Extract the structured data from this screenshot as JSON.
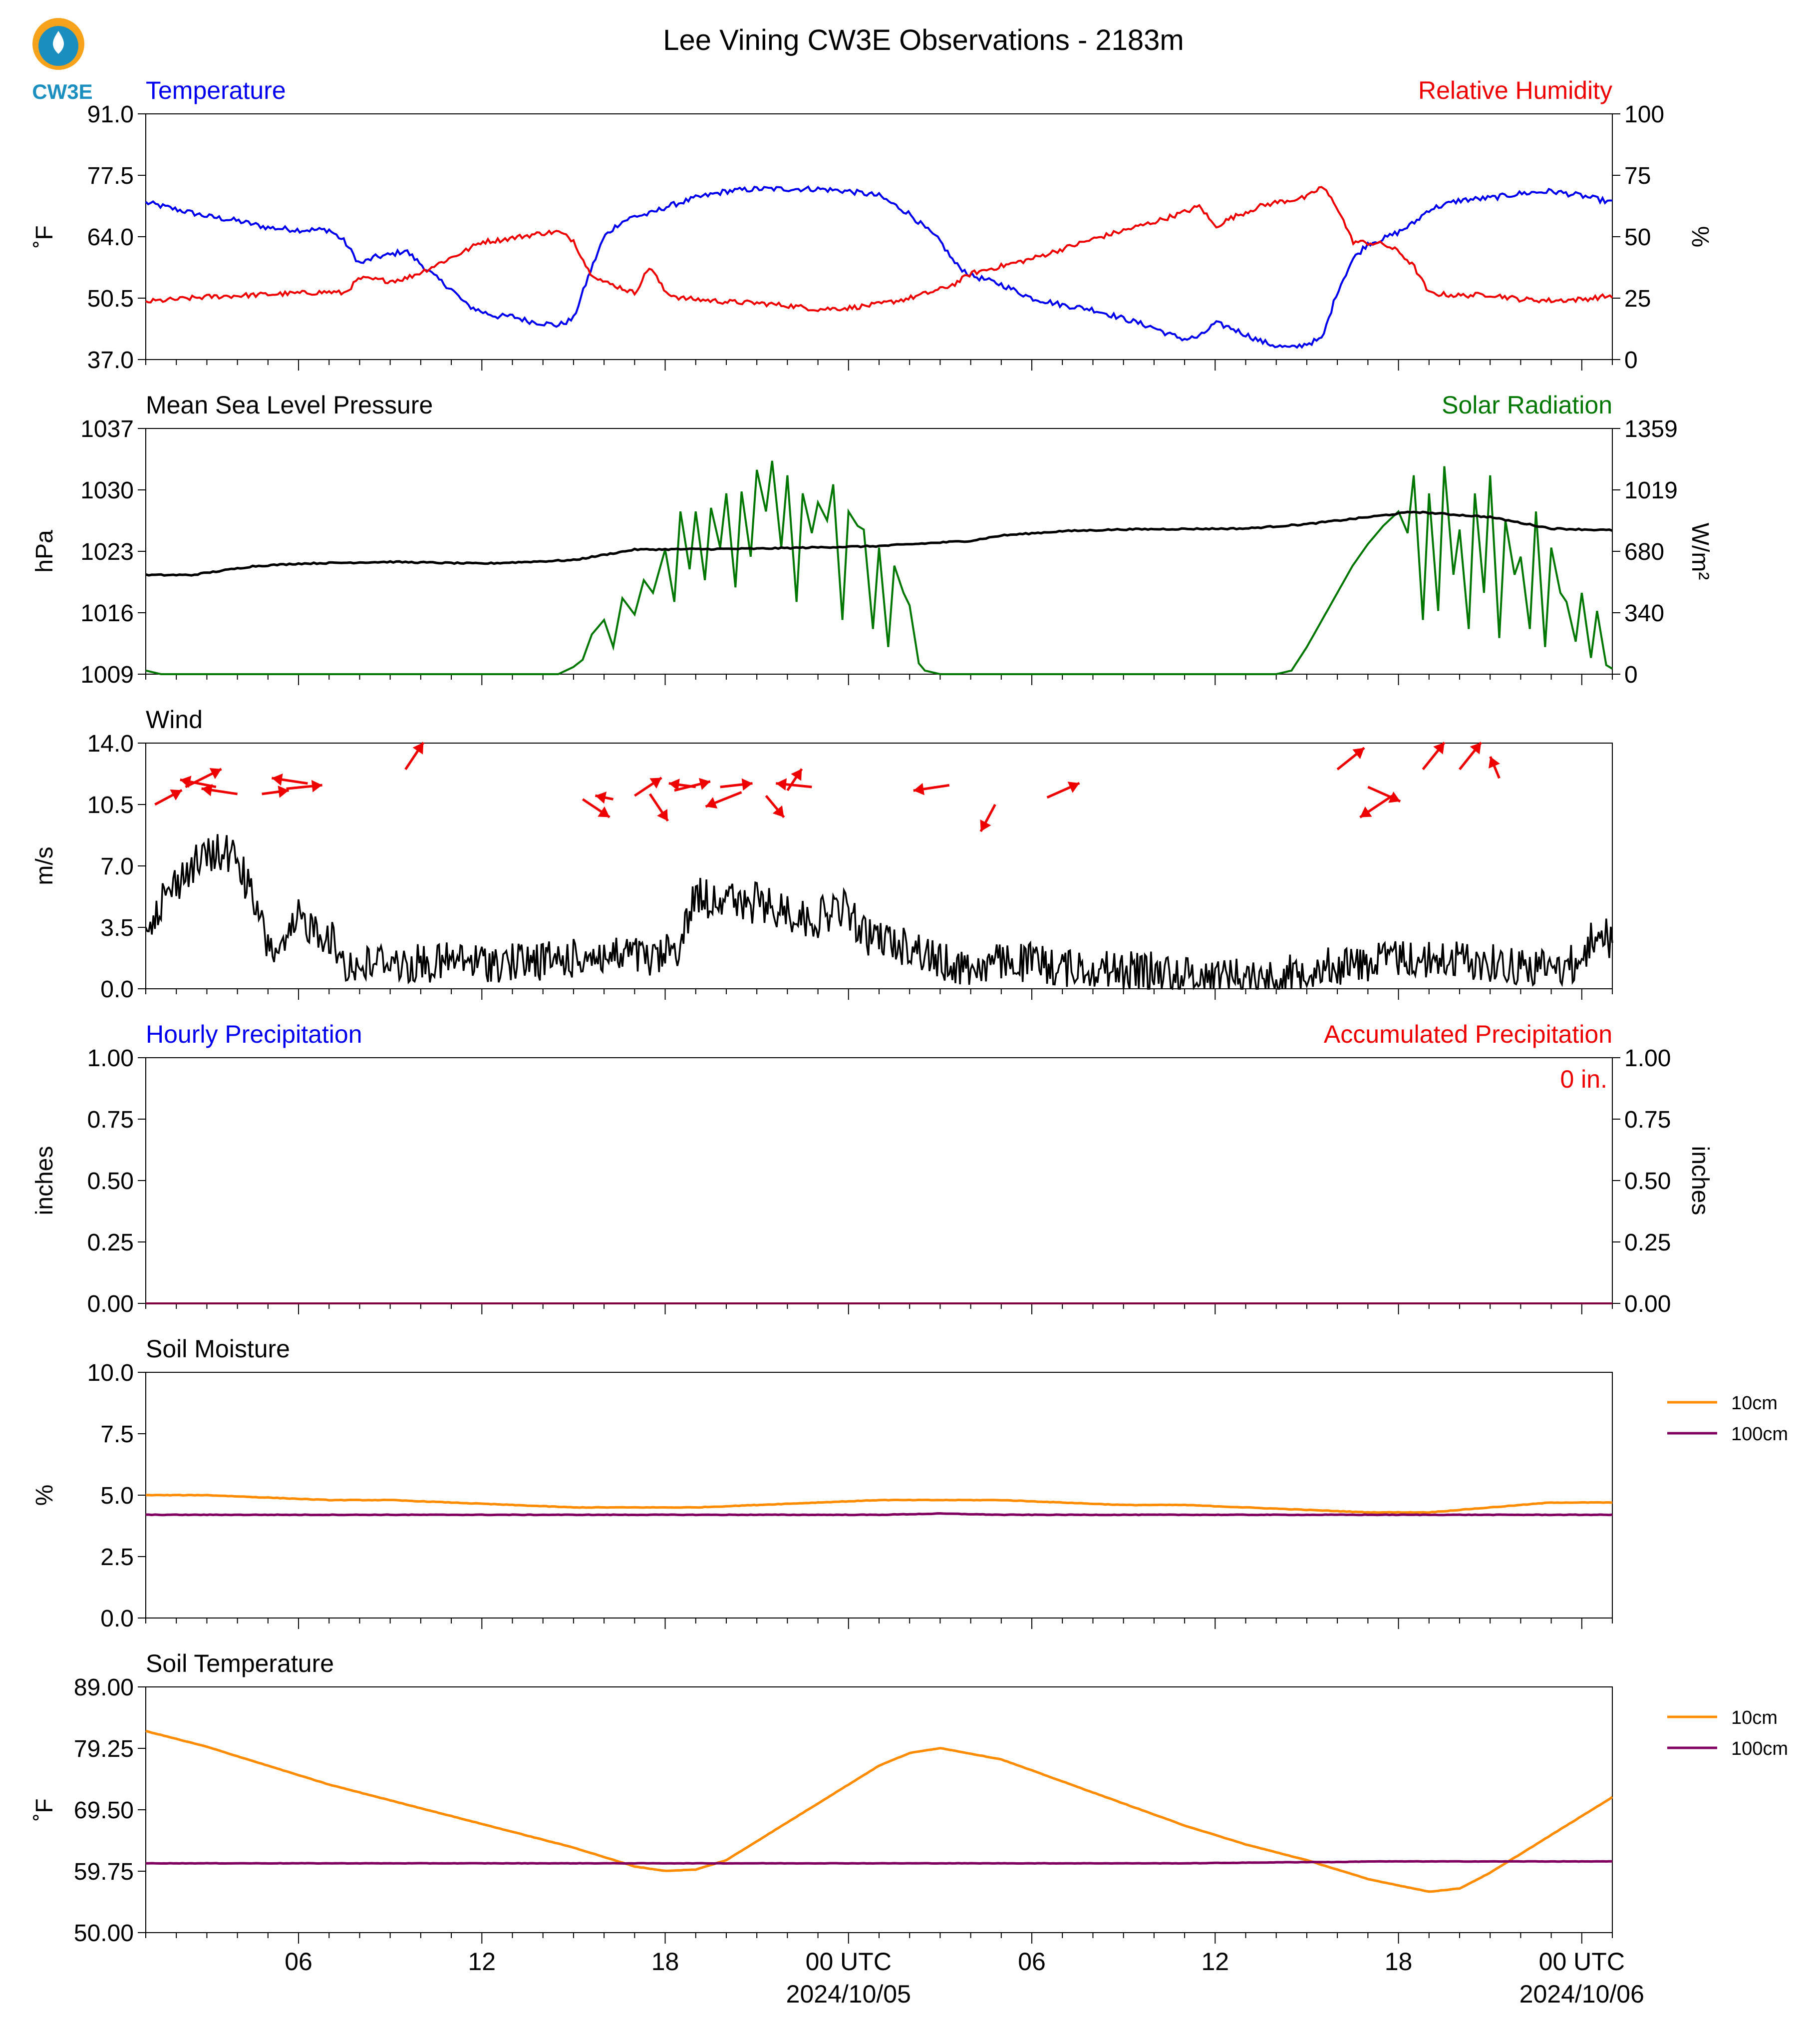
{
  "title": "Lee Vining CW3E Observations - 2183m",
  "logo": {
    "text": "CW3E",
    "icon": "water-drop-sun-icon",
    "color": "#1a8fbf",
    "accent": "#f7a21b"
  },
  "x_axis": {
    "tick_labels": [
      "06",
      "12",
      "18",
      "00 UTC",
      "06",
      "12",
      "18",
      "00 UTC"
    ],
    "date_labels": [
      "2024/10/05",
      "2024/10/06"
    ]
  },
  "chart_data": [
    {
      "type": "line",
      "title_left": "Temperature",
      "title_right": "Relative Humidity",
      "ylabel": "˚F",
      "ylabel_right": "%",
      "ylim": [
        37,
        91
      ],
      "ylim_right": [
        0,
        100
      ],
      "yticks": [
        "37.0",
        "50.5",
        "64.0",
        "77.5",
        "91.0"
      ],
      "yticks_right": [
        "0",
        "25",
        "50",
        "75",
        "100"
      ],
      "x_hours": [
        0,
        1,
        2,
        3,
        4,
        5,
        6,
        6.5,
        7,
        7.5,
        8,
        8.5,
        9,
        9.5,
        10,
        10.5,
        11,
        11.5,
        12,
        12.5,
        13,
        13.5,
        14,
        14.5,
        15,
        15.5,
        16,
        16.5,
        17,
        17.5,
        18,
        19,
        20,
        21,
        22,
        23,
        24,
        25,
        26,
        26.5,
        27,
        28,
        29,
        30,
        31,
        32,
        33,
        33.5,
        34,
        34.5,
        35,
        35.5,
        36,
        36.5,
        37,
        37.5,
        38,
        38.5,
        39,
        39.5,
        40,
        40.5,
        41,
        41.5,
        42,
        43,
        44,
        45,
        46,
        47,
        48
      ],
      "series": [
        {
          "name": "Temperature",
          "color": "#0000ee",
          "values": [
            71.5,
            70,
            68.5,
            67.5,
            66,
            65.5,
            65.5,
            63,
            58,
            59.5,
            60,
            61,
            58,
            55,
            52.5,
            49,
            47.5,
            46.5,
            46.5,
            45.5,
            45,
            44.5,
            46,
            55.5,
            64,
            67,
            68.5,
            69,
            70.5,
            71.5,
            72.5,
            74,
            74.5,
            74.5,
            74.5,
            74,
            73,
            69,
            63,
            58,
            55.5,
            53.5,
            50.5,
            49,
            48,
            46,
            44,
            42.5,
            41.5,
            42,
            45,
            44,
            42.5,
            41,
            40,
            39.5,
            40.5,
            41.5,
            52,
            59,
            62.5,
            63.5,
            65,
            67,
            70,
            72,
            72.5,
            73.5,
            74,
            73,
            71.5
          ]
        },
        {
          "name": "Relative Humidity",
          "color": "#ee0000",
          "values": [
            23.5,
            24.5,
            25.5,
            26,
            26.5,
            27,
            27.5,
            27,
            33,
            32.5,
            32,
            33,
            35.5,
            38.5,
            41.5,
            44.5,
            48,
            48.5,
            49.5,
            50.5,
            51.5,
            52,
            48.5,
            36,
            31.5,
            29.5,
            27,
            38,
            27.5,
            25,
            24.5,
            23.5,
            23,
            22,
            20.5,
            21,
            22.5,
            25,
            28.5,
            31,
            35,
            38,
            41,
            45,
            49,
            52.5,
            56,
            58,
            60,
            62.5,
            54,
            57.5,
            60,
            62.5,
            64,
            65,
            66,
            70.5,
            62,
            48,
            47.5,
            47,
            44,
            38,
            27,
            26,
            26.5,
            24.5,
            24,
            24.5,
            26
          ]
        }
      ]
    },
    {
      "type": "line",
      "title_left": "Mean Sea Level Pressure",
      "title_right": "Solar Radiation",
      "ylabel": "hPa",
      "ylabel_right": "W/m²",
      "ylim": [
        1009,
        1037
      ],
      "ylim_right": [
        0,
        1359
      ],
      "yticks": [
        "1009",
        "1016",
        "1023",
        "1030",
        "1037"
      ],
      "yticks_right": [
        "0",
        "340",
        "680",
        "1019",
        "1359"
      ],
      "pressure": {
        "name": "Mean Sea Level Pressure",
        "color": "#000000",
        "x_hours": [
          0,
          1.5,
          2.5,
          3.5,
          5,
          8,
          11,
          14,
          16,
          20,
          24,
          27,
          28,
          30,
          32,
          36,
          38,
          40,
          41.5,
          44,
          46,
          48
        ],
        "values": [
          1020.3,
          1020.3,
          1020.8,
          1021.3,
          1021.6,
          1021.8,
          1021.6,
          1022.0,
          1023.2,
          1023.3,
          1023.6,
          1024.2,
          1024.8,
          1025.3,
          1025.5,
          1025.6,
          1026.1,
          1026.9,
          1027.5,
          1026.9,
          1025.6,
          1025.4
        ]
      },
      "solar": {
        "name": "Solar Radiation",
        "color": "#007700",
        "x_hours": [
          0,
          0.5,
          13.5,
          14,
          14.3,
          14.6,
          15,
          15.3,
          15.6,
          16,
          16.3,
          16.6,
          17,
          17.3,
          17.5,
          17.8,
          18,
          18.3,
          18.5,
          18.8,
          19,
          19.3,
          19.5,
          19.8,
          20,
          20.3,
          20.5,
          20.8,
          21,
          21.3,
          21.5,
          21.8,
          22,
          22.3,
          22.5,
          22.8,
          23,
          23.3,
          23.5,
          23.8,
          24,
          24.3,
          24.5,
          24.8,
          25,
          25.3,
          25.5,
          26,
          37,
          37.5,
          38,
          38.5,
          39,
          39.5,
          40,
          40.5,
          41,
          41.3,
          41.5,
          41.8,
          42,
          42.3,
          42.5,
          42.8,
          43,
          43.3,
          43.5,
          43.8,
          44,
          44.3,
          44.5,
          44.8,
          45,
          45.3,
          45.5,
          45.8,
          46,
          46.3,
          46.5,
          46.8,
          47,
          47.3,
          47.5,
          47.8,
          48
        ],
        "values": [
          20,
          0,
          0,
          40,
          80,
          220,
          300,
          150,
          420,
          330,
          520,
          450,
          690,
          400,
          900,
          580,
          900,
          520,
          920,
          700,
          1000,
          480,
          1010,
          650,
          1130,
          900,
          1180,
          700,
          1100,
          400,
          1000,
          780,
          950,
          850,
          1050,
          300,
          900,
          820,
          800,
          250,
          700,
          150,
          600,
          450,
          380,
          60,
          20,
          0,
          0,
          20,
          150,
          300,
          450,
          600,
          720,
          820,
          900,
          780,
          1100,
          300,
          1000,
          350,
          1150,
          550,
          800,
          250,
          1000,
          450,
          1100,
          200,
          850,
          550,
          650,
          250,
          900,
          150,
          700,
          450,
          400,
          180,
          450,
          90,
          350,
          50,
          30
        ]
      }
    },
    {
      "type": "line",
      "title_left": "Wind",
      "ylabel": "m/s",
      "ylim": [
        0,
        14
      ],
      "yticks": [
        "0.0",
        "3.5",
        "7.0",
        "10.5",
        "14.0"
      ],
      "speed": {
        "name": "Wind Speed",
        "color": "#000000",
        "x_hours": [
          0,
          0.5,
          1,
          1.5,
          2,
          2.5,
          3,
          3.5,
          4,
          4.5,
          5,
          5.5,
          6,
          6.5,
          7,
          7.5,
          8,
          8.5,
          9,
          9.5,
          10,
          11,
          12,
          13,
          14,
          14.5,
          15,
          15.5,
          16,
          16.5,
          17,
          17.5,
          18,
          18.5,
          19,
          19.5,
          20,
          20.5,
          21,
          21.5,
          22,
          22.5,
          23,
          23.5,
          24,
          24.5,
          25,
          25.5,
          26,
          27,
          28,
          29,
          30,
          31,
          32,
          33,
          34,
          35,
          36,
          37,
          38,
          39,
          40,
          41,
          42,
          43,
          44,
          45,
          46,
          47,
          47.5,
          48
        ],
        "values": [
          3.5,
          5.0,
          6.0,
          7.0,
          7.5,
          7.8,
          7.5,
          5.0,
          2.5,
          2.0,
          4.0,
          3.5,
          3.0,
          1.5,
          1.2,
          1.5,
          1.8,
          1.2,
          1.5,
          1.4,
          1.6,
          1.5,
          1.5,
          1.6,
          1.7,
          2.0,
          1.8,
          1.8,
          2.0,
          1.5,
          2.0,
          2.5,
          5.5,
          5.0,
          5.5,
          4.5,
          5.0,
          4.5,
          4.5,
          4.0,
          4.0,
          4.5,
          4.5,
          3.0,
          3.0,
          2.5,
          2.5,
          2.0,
          1.5,
          1.2,
          1.5,
          1.5,
          1.2,
          1.2,
          1.0,
          1.0,
          0.8,
          0.8,
          0.7,
          0.5,
          1.2,
          1.3,
          1.5,
          1.8,
          1.6,
          1.7,
          1.5,
          1.3,
          1.2,
          1.5,
          3.5,
          2.5
        ]
      },
      "vectors": {
        "color": "#ee0000",
        "note_hours": [
          0.3,
          1.3,
          2.3,
          3.0,
          3.8,
          4.6,
          5.3,
          8.5,
          14.3,
          15.3,
          16.0,
          16.5,
          17.3,
          18.0,
          18.8,
          19.5,
          20.3,
          21.0,
          21.8,
          26.3,
          27.8,
          29.5,
          39.0,
          40.0,
          40.8,
          41.8,
          43.0,
          44.3
        ],
        "u": [
          1.5,
          2.0,
          -2.0,
          -2.0,
          1.5,
          2.0,
          -2.0,
          1.0,
          1.5,
          -1.0,
          1.5,
          1.0,
          2.0,
          -1.5,
          1.8,
          -2.0,
          1.0,
          0.8,
          -2.0,
          -2.0,
          -0.8,
          1.8,
          1.5,
          1.8,
          -1.8,
          1.2,
          1.2,
          -0.5
        ],
        "v": [
          0.8,
          1.0,
          0.4,
          0.3,
          0.2,
          0.2,
          0.3,
          1.5,
          -1.0,
          0.2,
          1.0,
          -1.5,
          0.5,
          0.2,
          0.2,
          -0.8,
          -1.2,
          1.2,
          0.2,
          -0.3,
          -1.5,
          0.8,
          1.2,
          -0.8,
          -1.2,
          1.5,
          1.5,
          1.2
        ],
        "level": [
          10.5,
          11.5,
          11.5,
          11.1,
          11.1,
          11.4,
          11.7,
          12.5,
          10.8,
          10.8,
          11.0,
          11.1,
          11.3,
          11.5,
          11.5,
          11.2,
          11.0,
          11.3,
          11.5,
          11.6,
          10.5,
          10.9,
          12.5,
          11.5,
          11.0,
          12.5,
          12.5,
          12.0
        ]
      }
    },
    {
      "type": "line",
      "title_left": "Hourly Precipitation",
      "title_right": "Accumulated Precipitation",
      "ylabel": "inches",
      "ylabel_right": "inches",
      "ylim": [
        0,
        1
      ],
      "ylim_right": [
        0,
        1
      ],
      "yticks": [
        "0.00",
        "0.25",
        "0.50",
        "0.75",
        "1.00"
      ],
      "yticks_right": [
        "0.00",
        "0.25",
        "0.50",
        "0.75",
        "1.00"
      ],
      "annotation": "0 in.",
      "series": [
        {
          "name": "Hourly Precipitation",
          "color": "#0000ee",
          "values": [
            0,
            0
          ]
        },
        {
          "name": "Accumulated Precipitation",
          "color": "#ee0000",
          "values": [
            0,
            0
          ]
        }
      ]
    },
    {
      "type": "line",
      "title_left": "Soil Moisture",
      "ylabel": "%",
      "ylim": [
        0,
        10
      ],
      "yticks": [
        "0.0",
        "2.5",
        "5.0",
        "7.5",
        "10.0"
      ],
      "x_hours": [
        0,
        2,
        4,
        6,
        8,
        10,
        12,
        14,
        16,
        18,
        20,
        22,
        24,
        26,
        28,
        30,
        32,
        34,
        36,
        38,
        40,
        42,
        44,
        46,
        48
      ],
      "legend": "right",
      "series": [
        {
          "name": "10cm",
          "color": "#ff8c00",
          "values": [
            5.0,
            5.0,
            4.9,
            4.8,
            4.8,
            4.7,
            4.6,
            4.5,
            4.5,
            4.5,
            4.6,
            4.7,
            4.8,
            4.8,
            4.8,
            4.7,
            4.6,
            4.6,
            4.5,
            4.4,
            4.3,
            4.3,
            4.5,
            4.7,
            4.7
          ]
        },
        {
          "name": "100cm",
          "color": "#800060",
          "values": [
            4.2,
            4.2,
            4.2,
            4.2,
            4.2,
            4.2,
            4.2,
            4.2,
            4.2,
            4.2,
            4.2,
            4.2,
            4.2,
            4.25,
            4.2,
            4.2,
            4.2,
            4.2,
            4.2,
            4.2,
            4.2,
            4.2,
            4.2,
            4.2,
            4.2
          ]
        }
      ]
    },
    {
      "type": "line",
      "title_left": "Soil Temperature",
      "ylabel": "˚F",
      "ylim": [
        50,
        89
      ],
      "yticks": [
        "50.00",
        "59.75",
        "69.50",
        "79.25",
        "89.00"
      ],
      "x_hours": [
        0,
        2,
        4,
        6,
        8,
        10,
        12,
        14,
        15,
        16,
        17,
        18,
        19,
        20,
        22,
        24,
        25,
        26,
        28,
        30,
        32,
        34,
        36,
        38,
        39,
        40,
        41,
        42,
        43,
        44,
        46,
        48
      ],
      "legend": "right",
      "series": [
        {
          "name": "10cm",
          "color": "#ff8c00",
          "values": [
            82,
            79.5,
            76.5,
            73.5,
            71,
            68.5,
            66,
            63.5,
            62.0,
            60.5,
            59.8,
            60.0,
            61.5,
            64.5,
            70.5,
            76.5,
            78.5,
            79.3,
            77.5,
            74,
            70.5,
            67,
            64,
            61.5,
            60.0,
            58.5,
            57.5,
            56.5,
            57.0,
            59.5,
            65.5,
            71.5
          ]
        },
        {
          "name": "100cm",
          "color": "#800060",
          "values": [
            61.0,
            61.0,
            61.0,
            61.0,
            61.0,
            61.0,
            61.0,
            61.0,
            61.0,
            61.0,
            61.0,
            61.0,
            61.0,
            61.0,
            61.0,
            61.0,
            61.0,
            61.0,
            61.0,
            61.0,
            61.0,
            61.0,
            61.1,
            61.2,
            61.2,
            61.3,
            61.3,
            61.3,
            61.3,
            61.3,
            61.3,
            61.3
          ]
        }
      ]
    }
  ]
}
